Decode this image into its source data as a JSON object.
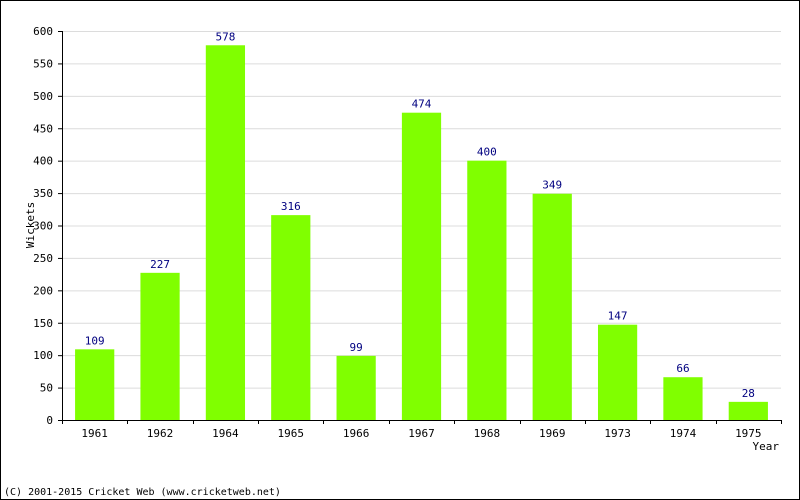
{
  "chart_data": {
    "type": "bar",
    "categories": [
      "1961",
      "1962",
      "1964",
      "1965",
      "1966",
      "1967",
      "1968",
      "1969",
      "1973",
      "1974",
      "1975"
    ],
    "values": [
      109,
      227,
      578,
      316,
      99,
      474,
      400,
      349,
      147,
      66,
      28
    ],
    "title": "",
    "xlabel": "Year",
    "ylabel": "Wickets",
    "ylim": [
      0,
      600
    ],
    "yticks": [
      0,
      50,
      100,
      150,
      200,
      250,
      300,
      350,
      400,
      450,
      500,
      550,
      600
    ],
    "grid": true,
    "bar_color": "#80ff00",
    "label_color": "#000080"
  },
  "footer": "(C) 2001-2015 Cricket Web (www.cricketweb.net)"
}
